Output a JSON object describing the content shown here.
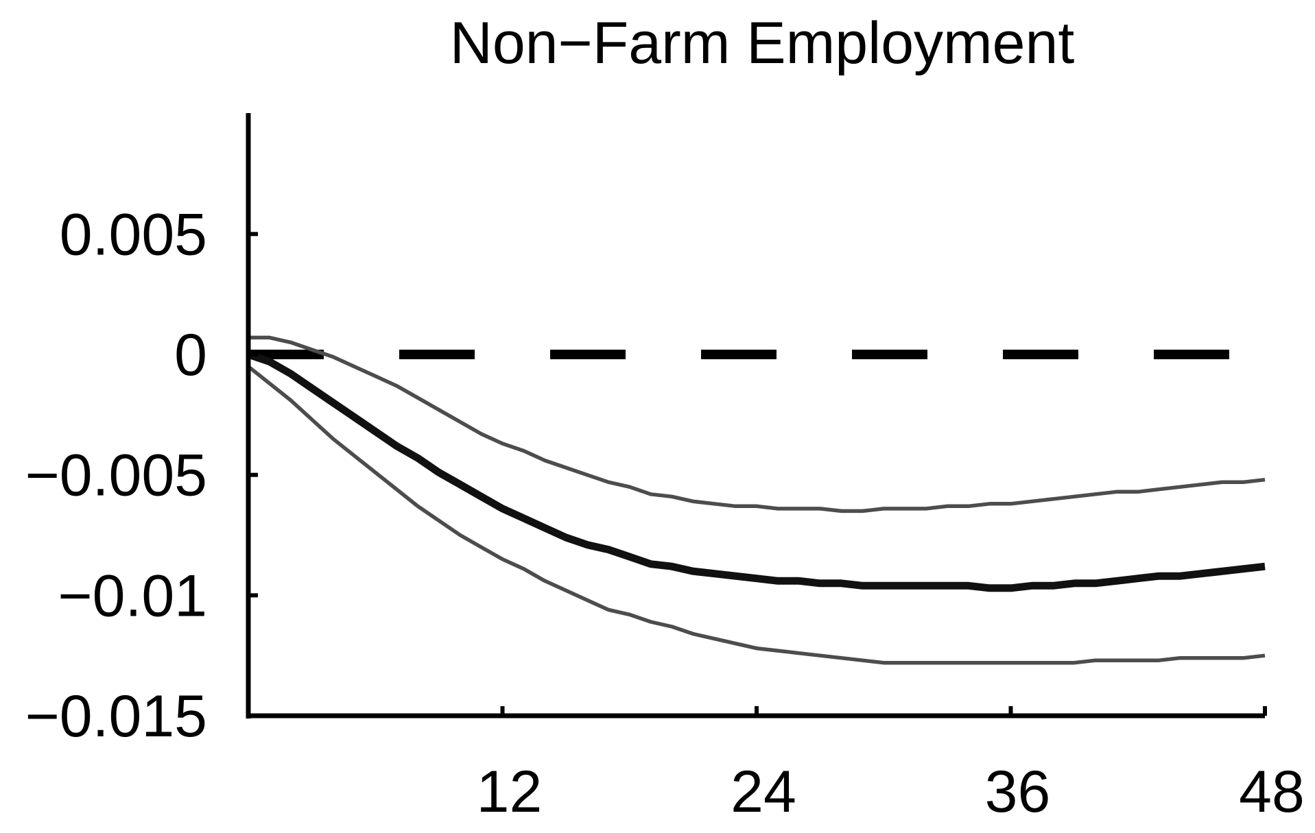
{
  "chart_data": {
    "type": "line",
    "title": "Non−Farm Employment",
    "xlabel": "",
    "ylabel": "",
    "xlim": [
      0,
      48
    ],
    "ylim": [
      -0.015,
      0.0099
    ],
    "x_ticks": [
      12,
      24,
      36,
      48
    ],
    "x_tick_labels": [
      "12",
      "24",
      "36",
      "48"
    ],
    "y_ticks": [
      0.005,
      0,
      -0.005,
      -0.01,
      -0.015
    ],
    "y_tick_labels": [
      "0.005",
      "0",
      "−0.005",
      "−0.01",
      "−0.015"
    ],
    "grid": false,
    "legend": "none",
    "zero_line": {
      "y": 0,
      "style": "dashed",
      "color": "#000000"
    },
    "x": [
      0,
      1,
      2,
      3,
      4,
      5,
      6,
      7,
      8,
      9,
      10,
      11,
      12,
      13,
      14,
      15,
      16,
      17,
      18,
      19,
      20,
      21,
      22,
      23,
      24,
      25,
      26,
      27,
      28,
      29,
      30,
      31,
      32,
      33,
      34,
      35,
      36,
      37,
      38,
      39,
      40,
      41,
      42,
      43,
      44,
      45,
      46,
      47,
      48
    ],
    "series": [
      {
        "role": "point-estimate",
        "color": "#111111",
        "values": [
          0,
          -0.0003,
          -0.0008,
          -0.0014,
          -0.002,
          -0.0026,
          -0.0032,
          -0.0038,
          -0.0043,
          -0.0049,
          -0.0054,
          -0.0059,
          -0.0064,
          -0.0068,
          -0.0072,
          -0.0076,
          -0.0079,
          -0.0081,
          -0.0084,
          -0.0087,
          -0.0088,
          -0.009,
          -0.0091,
          -0.0092,
          -0.0093,
          -0.0094,
          -0.0094,
          -0.0095,
          -0.0095,
          -0.0096,
          -0.0096,
          -0.0096,
          -0.0096,
          -0.0096,
          -0.0096,
          -0.0097,
          -0.0097,
          -0.0096,
          -0.0096,
          -0.0095,
          -0.0095,
          -0.0094,
          -0.0093,
          -0.0092,
          -0.0092,
          -0.0091,
          -0.009,
          -0.0089,
          -0.0088
        ]
      },
      {
        "role": "upper-band",
        "color": "#4d4d4d",
        "values": [
          0.0007,
          0.0007,
          0.0005,
          0.0002,
          -0.0001,
          -0.0005,
          -0.0009,
          -0.0013,
          -0.0018,
          -0.0023,
          -0.0028,
          -0.0033,
          -0.0037,
          -0.004,
          -0.0044,
          -0.0047,
          -0.005,
          -0.0053,
          -0.0055,
          -0.0058,
          -0.0059,
          -0.0061,
          -0.0062,
          -0.0063,
          -0.0063,
          -0.0064,
          -0.0064,
          -0.0064,
          -0.0065,
          -0.0065,
          -0.0064,
          -0.0064,
          -0.0064,
          -0.0063,
          -0.0063,
          -0.0062,
          -0.0062,
          -0.0061,
          -0.006,
          -0.0059,
          -0.0058,
          -0.0057,
          -0.0057,
          -0.0056,
          -0.0055,
          -0.0054,
          -0.0053,
          -0.0053,
          -0.0052
        ]
      },
      {
        "role": "lower-band",
        "color": "#4d4d4d",
        "values": [
          -0.0005,
          -0.0012,
          -0.0019,
          -0.0027,
          -0.0035,
          -0.0042,
          -0.0049,
          -0.0056,
          -0.0063,
          -0.0069,
          -0.0075,
          -0.008,
          -0.0085,
          -0.0089,
          -0.0094,
          -0.0098,
          -0.0102,
          -0.0106,
          -0.0108,
          -0.0111,
          -0.0113,
          -0.0116,
          -0.0118,
          -0.012,
          -0.0122,
          -0.0123,
          -0.0124,
          -0.0125,
          -0.0126,
          -0.0127,
          -0.0128,
          -0.0128,
          -0.0128,
          -0.0128,
          -0.0128,
          -0.0128,
          -0.0128,
          -0.0128,
          -0.0128,
          -0.0128,
          -0.0127,
          -0.0127,
          -0.0127,
          -0.0127,
          -0.0126,
          -0.0126,
          -0.0126,
          -0.0126,
          -0.0125
        ]
      }
    ]
  }
}
